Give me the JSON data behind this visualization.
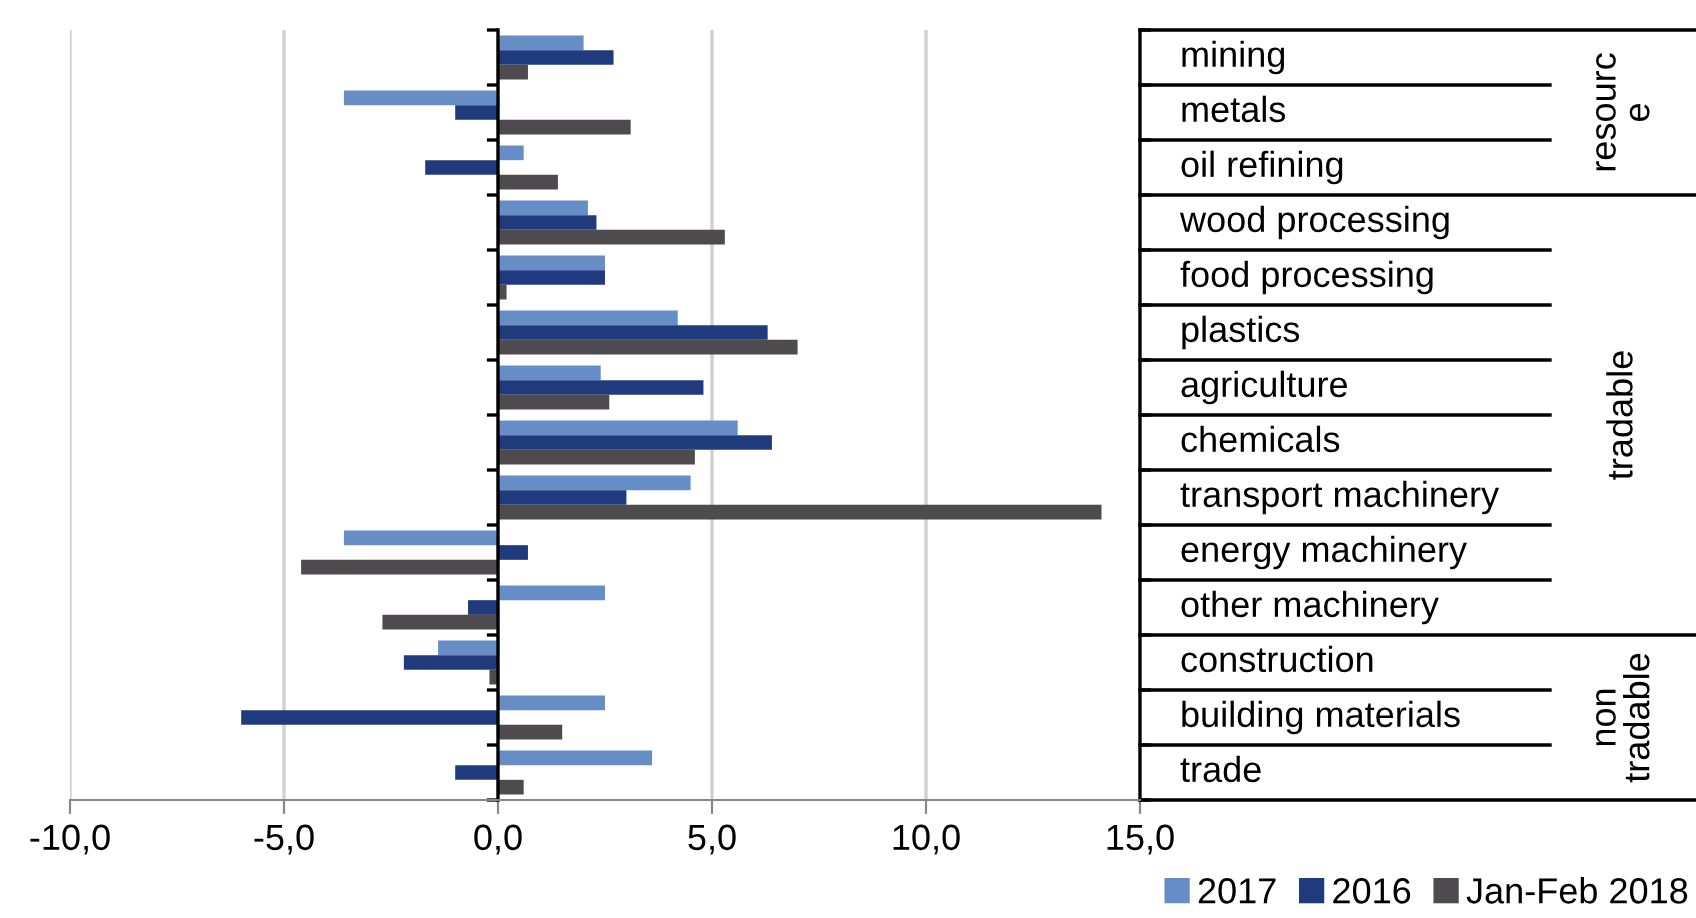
{
  "chart_data": {
    "type": "bar",
    "orientation": "horizontal",
    "categories": [
      "mining",
      "metals",
      "oil refining",
      "wood processing",
      "food processing",
      "plastics",
      "agriculture",
      "chemicals",
      "transport machinery",
      "energy machinery",
      "other machinery",
      "construction",
      "building materials",
      "trade"
    ],
    "series": [
      {
        "name": "2017",
        "color": "#678dc6",
        "values": [
          2.0,
          -3.6,
          0.6,
          2.1,
          2.5,
          4.2,
          2.4,
          5.6,
          4.5,
          -3.6,
          2.5,
          -1.4,
          2.5,
          3.6
        ]
      },
      {
        "name": "2016",
        "color": "#1f3a7d",
        "values": [
          2.7,
          -1.0,
          -1.7,
          2.3,
          2.5,
          6.3,
          4.8,
          6.4,
          3.0,
          0.7,
          -0.7,
          -2.2,
          -6.0,
          -1.0
        ]
      },
      {
        "name": "Jan-Feb 2018",
        "color": "#4e4a4d",
        "values": [
          0.7,
          3.1,
          1.4,
          5.3,
          0.2,
          7.0,
          2.6,
          4.6,
          14.1,
          -4.6,
          -2.7,
          -0.2,
          1.5,
          0.6
        ]
      }
    ],
    "xlim": [
      -10,
      15
    ],
    "xticks": [
      {
        "value": -10,
        "label": "-10,0"
      },
      {
        "value": -5,
        "label": "-5,0"
      },
      {
        "value": 0,
        "label": "0,0"
      },
      {
        "value": 5,
        "label": "5,0"
      },
      {
        "value": 10,
        "label": "10,0"
      },
      {
        "value": 15,
        "label": "15,0"
      }
    ],
    "grid": "x",
    "legend": "bottom right",
    "annotations": [
      "resourc\ne",
      "tradable",
      "non\ntradable"
    ]
  }
}
